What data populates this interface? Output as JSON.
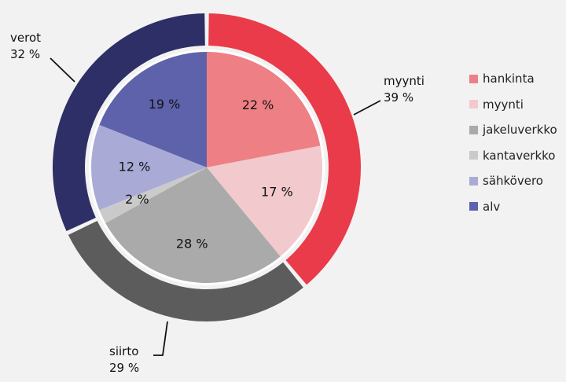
{
  "chart_data": {
    "type": "pie",
    "title": "",
    "inner": {
      "slices": [
        {
          "label": "hankinta",
          "value": 22,
          "value_label": "22 %",
          "color": "#ee8085"
        },
        {
          "label": "myynti",
          "value": 17,
          "value_label": "17 %",
          "color": "#f2c9cd"
        },
        {
          "label": "jakeluverkko",
          "value": 28,
          "value_label": "28 %",
          "color": "#aaaaaa"
        },
        {
          "label": "kantaverkko",
          "value": 2,
          "value_label": "2 %",
          "color": "#cacaca"
        },
        {
          "label": "sähkövero",
          "value": 12,
          "value_label": "12 %",
          "color": "#a9abd6"
        },
        {
          "label": "alv",
          "value": 19,
          "value_label": "19 %",
          "color": "#5e62ab"
        }
      ]
    },
    "outer": {
      "slices": [
        {
          "name": "myynti",
          "value": 39,
          "value_label": "39 %",
          "color": "#e93b4a"
        },
        {
          "name": "siirto",
          "value": 29,
          "value_label": "29 %",
          "color": "#5c5c5c"
        },
        {
          "name": "verot",
          "value": 32,
          "value_label": "32 %",
          "color": "#2d2f66"
        }
      ]
    },
    "legend": {
      "position": "right",
      "entries": [
        "hankinta",
        "myynti",
        "jakeluverkko",
        "kantaverkko",
        "sähkövero",
        "alv"
      ]
    }
  }
}
